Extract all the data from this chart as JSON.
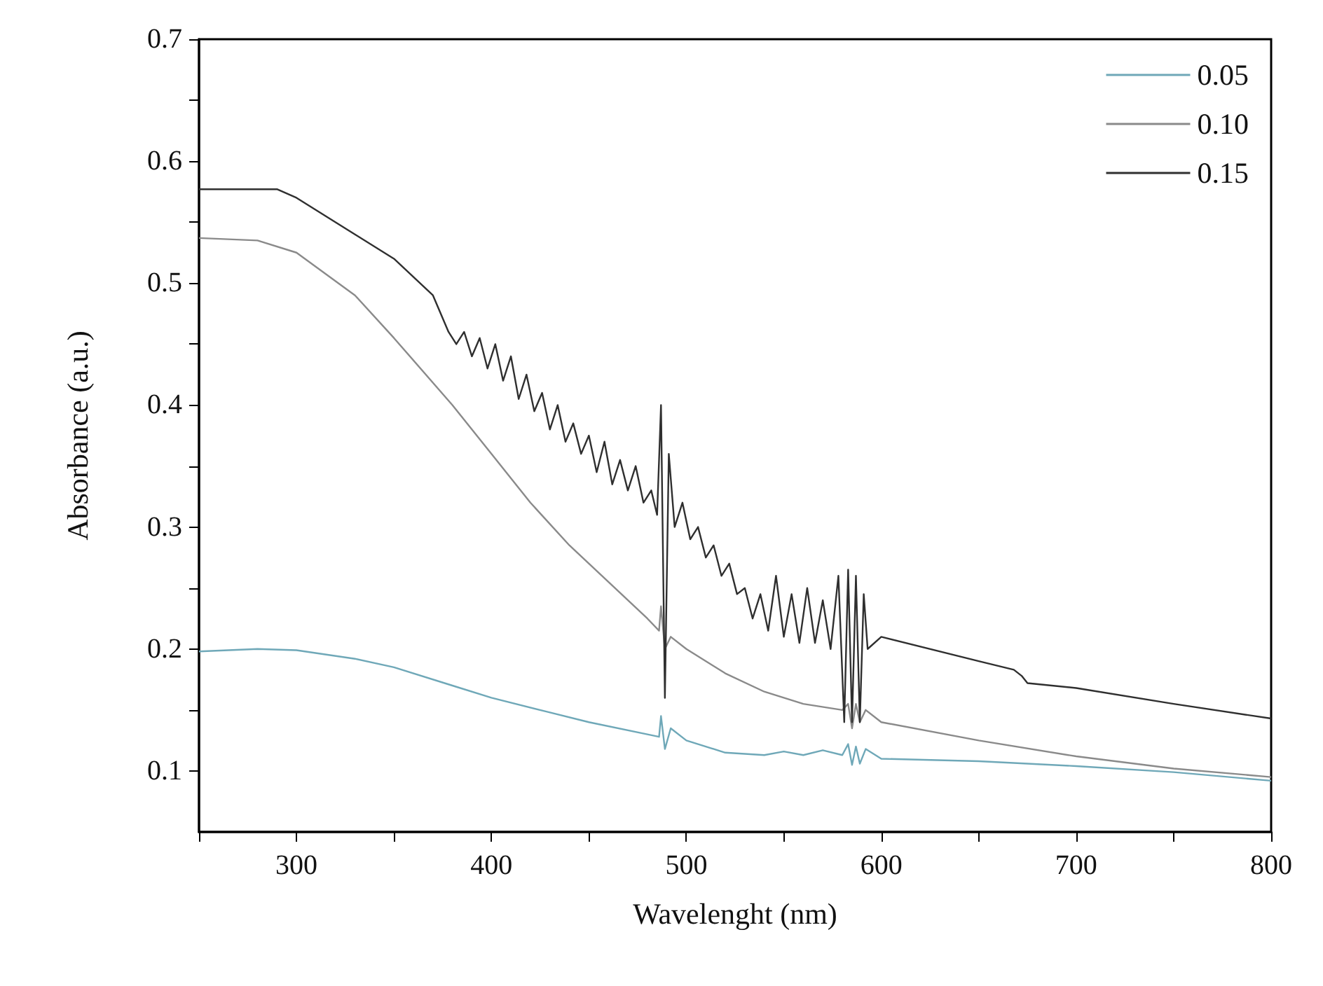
{
  "chart_data": {
    "type": "line",
    "xlabel": "Wavelenght (nm)",
    "ylabel": "Absorbance (a.u.)",
    "xlim": [
      250,
      800
    ],
    "ylim": [
      0.05,
      0.7
    ],
    "xticks": [
      {
        "value": 250,
        "label": null
      },
      300,
      {
        "value": 350,
        "label": null
      },
      400,
      {
        "value": 450,
        "label": null
      },
      500,
      {
        "value": 550,
        "label": null
      },
      600,
      {
        "value": 650,
        "label": null
      },
      700,
      {
        "value": 750,
        "label": null
      },
      800
    ],
    "yticks": [
      0.1,
      {
        "value": 0.15,
        "label": null
      },
      0.2,
      {
        "value": 0.25,
        "label": null
      },
      0.3,
      {
        "value": 0.35,
        "label": null
      },
      0.4,
      {
        "value": 0.45,
        "label": null
      },
      0.5,
      {
        "value": 0.55,
        "label": null
      },
      0.6,
      {
        "value": 0.65,
        "label": null
      },
      0.7
    ],
    "grid": false,
    "legend": "top right",
    "line_style": "solid",
    "marker": "none",
    "series": [
      {
        "name": "0.05",
        "color": "#6fa8b8",
        "x": [
          250,
          280,
          300,
          330,
          350,
          380,
          400,
          430,
          450,
          480,
          486,
          487,
          489,
          492,
          500,
          520,
          540,
          550,
          560,
          570,
          580,
          583,
          585,
          587,
          589,
          592,
          600,
          650,
          700,
          750,
          800
        ],
        "values": [
          0.198,
          0.2,
          0.199,
          0.192,
          0.185,
          0.17,
          0.16,
          0.148,
          0.14,
          0.13,
          0.128,
          0.145,
          0.118,
          0.135,
          0.125,
          0.115,
          0.113,
          0.116,
          0.113,
          0.117,
          0.113,
          0.122,
          0.105,
          0.12,
          0.106,
          0.118,
          0.11,
          0.108,
          0.104,
          0.099,
          0.092
        ]
      },
      {
        "name": "0.10",
        "color": "#8a8a8a",
        "x": [
          250,
          280,
          300,
          330,
          350,
          380,
          400,
          420,
          440,
          460,
          480,
          486,
          487,
          489,
          492,
          500,
          520,
          540,
          560,
          580,
          583,
          585,
          587,
          589,
          592,
          600,
          650,
          700,
          750,
          800
        ],
        "values": [
          0.537,
          0.535,
          0.525,
          0.49,
          0.455,
          0.4,
          0.36,
          0.32,
          0.285,
          0.255,
          0.225,
          0.215,
          0.235,
          0.2,
          0.21,
          0.2,
          0.18,
          0.165,
          0.155,
          0.15,
          0.155,
          0.135,
          0.155,
          0.14,
          0.15,
          0.14,
          0.125,
          0.112,
          0.102,
          0.095
        ]
      },
      {
        "name": "0.15",
        "color": "#2f2f2f",
        "x": [
          250,
          290,
          300,
          330,
          350,
          370,
          378,
          382,
          386,
          390,
          394,
          398,
          402,
          406,
          410,
          414,
          418,
          422,
          426,
          430,
          434,
          438,
          442,
          446,
          450,
          454,
          458,
          462,
          466,
          470,
          474,
          478,
          482,
          485,
          487,
          489,
          491,
          494,
          498,
          502,
          506,
          510,
          514,
          518,
          522,
          526,
          530,
          534,
          538,
          542,
          546,
          550,
          554,
          558,
          562,
          566,
          570,
          574,
          578,
          581,
          583,
          585,
          587,
          589,
          591,
          593,
          600,
          650,
          668,
          672,
          675,
          700,
          750,
          800
        ],
        "values": [
          0.577,
          0.577,
          0.57,
          0.54,
          0.52,
          0.49,
          0.46,
          0.45,
          0.46,
          0.44,
          0.455,
          0.43,
          0.45,
          0.42,
          0.44,
          0.405,
          0.425,
          0.395,
          0.41,
          0.38,
          0.4,
          0.37,
          0.385,
          0.36,
          0.375,
          0.345,
          0.37,
          0.335,
          0.355,
          0.33,
          0.35,
          0.32,
          0.33,
          0.31,
          0.4,
          0.16,
          0.36,
          0.3,
          0.32,
          0.29,
          0.3,
          0.275,
          0.285,
          0.26,
          0.27,
          0.245,
          0.25,
          0.225,
          0.245,
          0.215,
          0.26,
          0.21,
          0.245,
          0.205,
          0.25,
          0.205,
          0.24,
          0.2,
          0.26,
          0.14,
          0.265,
          0.14,
          0.26,
          0.14,
          0.245,
          0.2,
          0.21,
          0.19,
          0.183,
          0.178,
          0.172,
          0.168,
          0.155,
          0.143
        ]
      }
    ]
  }
}
